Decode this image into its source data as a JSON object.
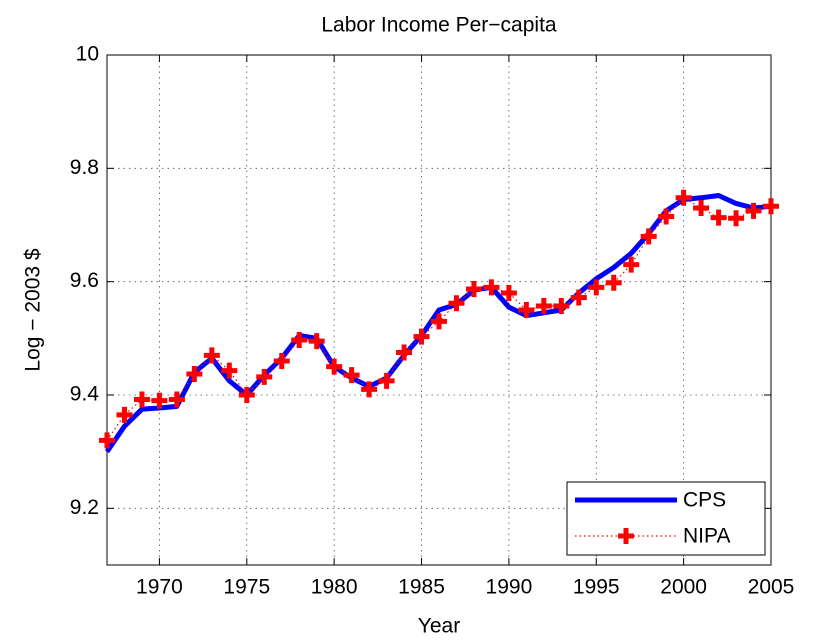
{
  "chart_data": {
    "type": "line",
    "title": "Labor Income Per−capita",
    "x_label": "Year",
    "y_label": "Log − 2003 $",
    "x": [
      1967,
      1968,
      1969,
      1970,
      1971,
      1972,
      1973,
      1974,
      1975,
      1976,
      1977,
      1978,
      1979,
      1980,
      1981,
      1982,
      1983,
      1984,
      1985,
      1986,
      1987,
      1988,
      1989,
      1990,
      1991,
      1992,
      1993,
      1994,
      1995,
      1996,
      1997,
      1998,
      1999,
      2000,
      2001,
      2002,
      2003,
      2004,
      2005
    ],
    "series": [
      {
        "name": "CPS",
        "color": "#0000ff",
        "style": "solid",
        "values": [
          9.3,
          9.345,
          9.375,
          9.377,
          9.38,
          9.44,
          9.465,
          9.425,
          9.4,
          9.435,
          9.465,
          9.505,
          9.5,
          9.45,
          9.43,
          9.415,
          9.43,
          9.47,
          9.505,
          9.55,
          9.56,
          9.585,
          9.59,
          9.555,
          9.54,
          9.545,
          9.55,
          9.58,
          9.605,
          9.625,
          9.65,
          9.685,
          9.725,
          9.745,
          9.748,
          9.752,
          9.738,
          9.73,
          9.733
        ]
      },
      {
        "name": "NIPA",
        "color": "#ff0000",
        "style": "dotted-plus",
        "values": [
          9.32,
          9.365,
          9.392,
          9.39,
          9.392,
          9.437,
          9.47,
          9.443,
          9.4,
          9.432,
          9.46,
          9.497,
          9.495,
          9.45,
          9.435,
          9.41,
          9.425,
          9.475,
          9.503,
          9.53,
          9.562,
          9.587,
          9.59,
          9.58,
          9.55,
          9.557,
          9.557,
          9.572,
          9.59,
          9.598,
          9.63,
          9.68,
          9.715,
          9.748,
          9.73,
          9.713,
          9.712,
          9.725,
          9.733
        ]
      }
    ],
    "xlim": [
      1967,
      2005
    ],
    "xticks": [
      1970,
      1975,
      1980,
      1985,
      1990,
      1995,
      2000,
      2005
    ],
    "ylim": [
      9.1,
      10
    ],
    "yticks": [
      9.2,
      9.4,
      9.6,
      9.8,
      10
    ],
    "grid": true,
    "legend_location": "lower right"
  }
}
